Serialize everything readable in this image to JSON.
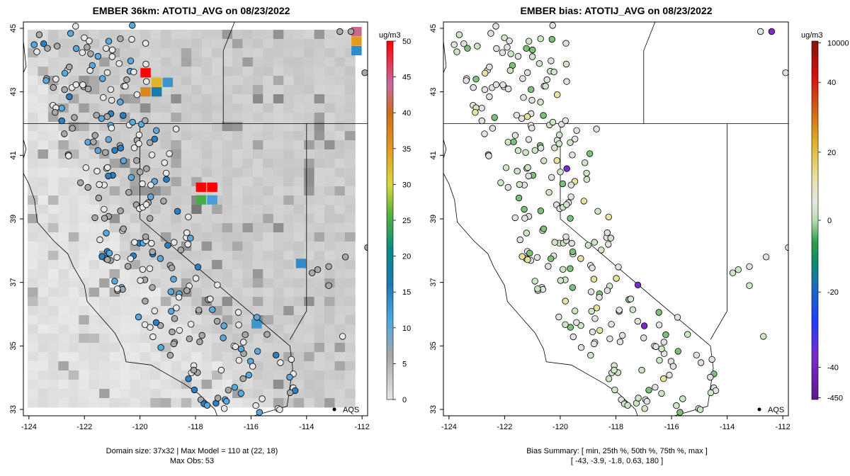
{
  "chart_data": [
    {
      "type": "map",
      "title": "EMBER 36km: ATOTIJ_AVG on 08/23/2022",
      "x_ticks": [
        "-124",
        "-122",
        "-120",
        "-118",
        "-116",
        "-114",
        "-112"
      ],
      "y_ticks": [
        "33",
        "35",
        "37",
        "39",
        "41",
        "43",
        "45"
      ],
      "xlim": [
        -124.2,
        -111.8
      ],
      "ylim": [
        32.8,
        45.2
      ],
      "colorbar_unit": "ug/m3",
      "colorbar_ticks": [
        "0",
        "5",
        "10",
        "15",
        "20",
        "25",
        "30",
        "35",
        "40",
        "45",
        "50"
      ],
      "colorbar_values": [
        0,
        5,
        10,
        15,
        20,
        25,
        30,
        35,
        40,
        45,
        50
      ],
      "legend_label": "AQS",
      "footer_line1": "Domain size: 37x32 | Max Model = 110 at (22, 18)",
      "footer_line2": "Max Obs: 53",
      "grid": "36km model cells, grey shades",
      "hotspots": [
        {
          "lon": -119.8,
          "lat": 43.6,
          "value": 50
        },
        {
          "lon": -119.4,
          "lat": 43.3,
          "value": 33
        },
        {
          "lon": -119.0,
          "lat": 43.3,
          "value": 12
        },
        {
          "lon": -119.8,
          "lat": 43.0,
          "value": 37
        },
        {
          "lon": -119.4,
          "lat": 43.0,
          "value": 16
        },
        {
          "lon": -117.4,
          "lat": 40.0,
          "value": 50
        },
        {
          "lon": -117.8,
          "lat": 40.0,
          "value": 50
        },
        {
          "lon": -117.8,
          "lat": 39.6,
          "value": 24
        },
        {
          "lon": -117.4,
          "lat": 39.6,
          "value": 11
        },
        {
          "lon": -112.2,
          "lat": 44.6,
          "value": 35
        },
        {
          "lon": -112.2,
          "lat": 44.9,
          "value": 44
        },
        {
          "lon": -112.2,
          "lat": 44.3,
          "value": 13
        },
        {
          "lon": -114.2,
          "lat": 37.6,
          "value": 13
        },
        {
          "lon": -115.8,
          "lat": 35.7,
          "value": 12
        }
      ]
    },
    {
      "type": "map",
      "title": "EMBER bias: ATOTIJ_AVG on 08/23/2022",
      "x_ticks": [
        "-124",
        "-122",
        "-120",
        "-118",
        "-116",
        "-114",
        "-112"
      ],
      "y_ticks": [
        "33",
        "35",
        "37",
        "39",
        "41",
        "43",
        "45"
      ],
      "xlim": [
        -124.2,
        -111.8
      ],
      "ylim": [
        32.8,
        45.2
      ],
      "colorbar_unit": "ug/m3",
      "colorbar_ticks": [
        "-450",
        "-40",
        "-20",
        "0",
        "20",
        "40",
        "10000"
      ],
      "colorbar_values": [
        -450,
        -40,
        -20,
        0,
        20,
        40,
        10000
      ],
      "legend_label": "AQS",
      "footer_line1": "Bias Summary: [ min, 25th %, 50th %, 75th %, max ]",
      "footer_line2": "[ -43,   -3.9,   -1.8,   0.63,   180 ]",
      "summary": {
        "min": -43,
        "p25": -3.9,
        "p50": -1.8,
        "p75": 0.63,
        "max": 180
      }
    }
  ]
}
